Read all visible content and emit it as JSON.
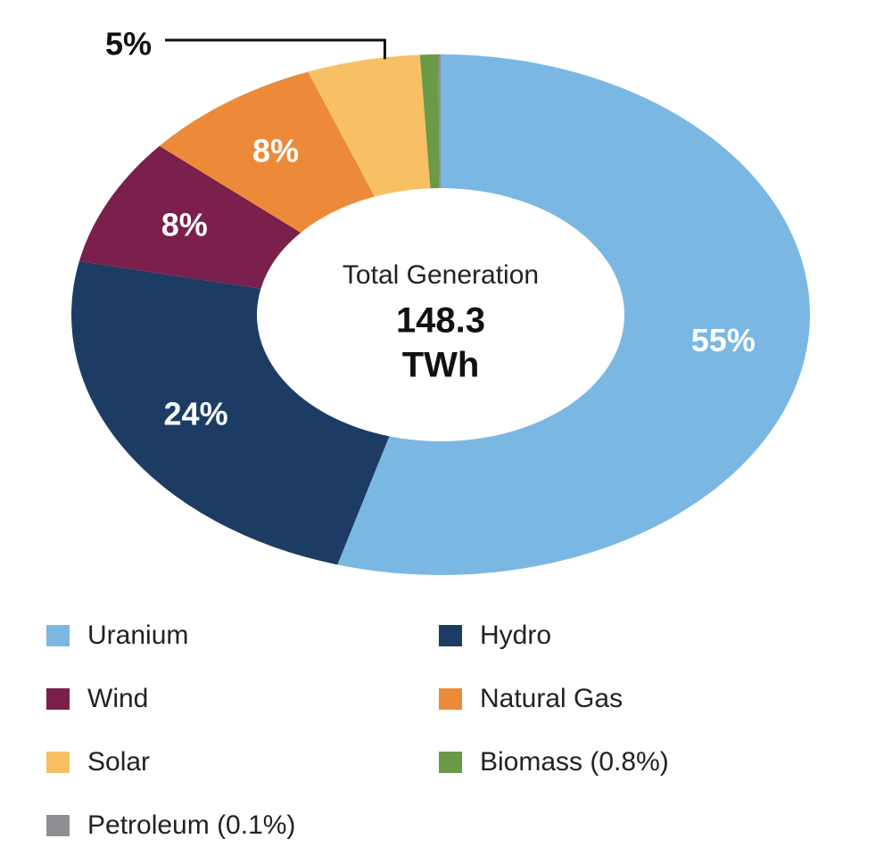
{
  "chart_data": {
    "type": "pie",
    "center": {
      "label": "Total Generation",
      "value": "148.3",
      "unit": "TWh"
    },
    "categories": [
      "Uranium",
      "Hydro",
      "Wind",
      "Natural Gas",
      "Solar",
      "Biomass (0.8%)",
      "Petroleum (0.1%)"
    ],
    "values": [
      55,
      24,
      8,
      8,
      5,
      0.8,
      0.1
    ],
    "value_labels": [
      "55%",
      "24%",
      "8%",
      "8%",
      "5%",
      null,
      null
    ],
    "colors": [
      "#7ab8e3",
      "#1c3c63",
      "#7b1f4c",
      "#ed8a3a",
      "#f7c064",
      "#6a9a45",
      "#8e8e93"
    ]
  }
}
